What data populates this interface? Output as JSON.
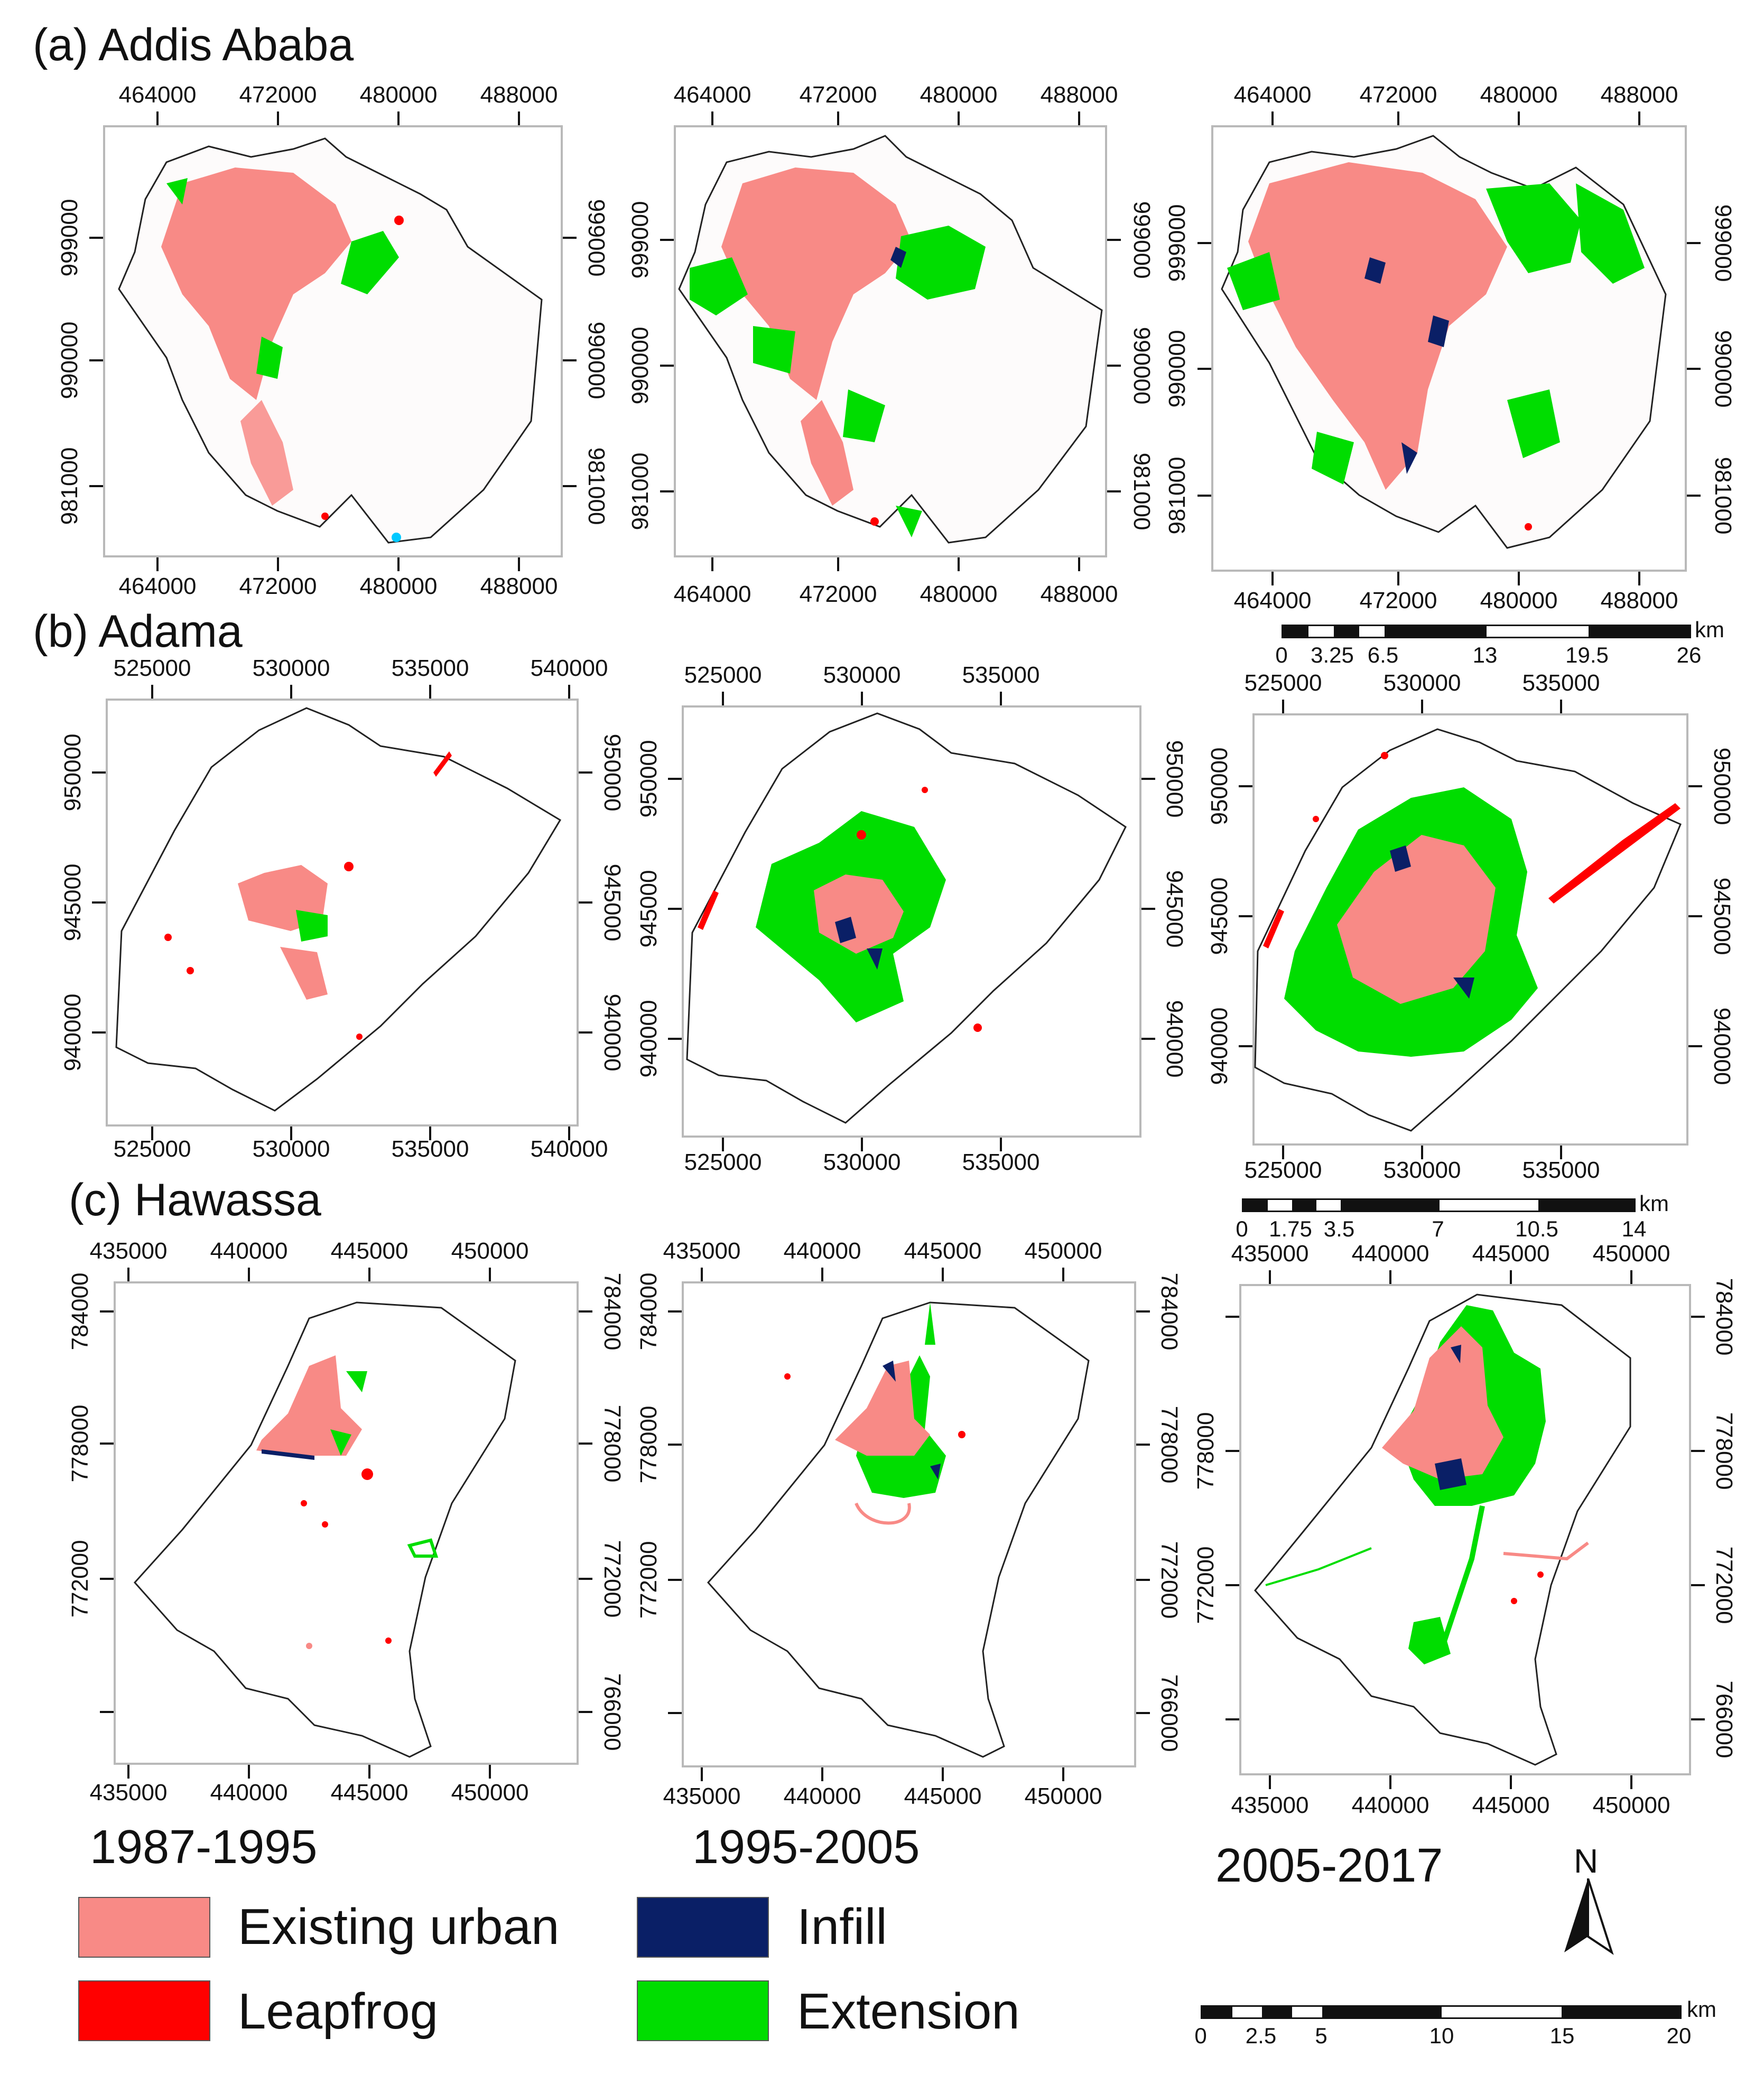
{
  "sections": [
    {
      "label": "(a) Addis Ababa",
      "x_ticks": [
        "464000",
        "472000",
        "480000",
        "488000"
      ],
      "y_ticks": [
        "999000",
        "990000",
        "981000"
      ]
    },
    {
      "label": "(b) Adama",
      "x_ticks": [
        "525000",
        "530000",
        "535000",
        "540000"
      ],
      "x_ticks_short": [
        "525000",
        "530000",
        "535000"
      ],
      "y_ticks": [
        "950000",
        "945000",
        "940000"
      ]
    },
    {
      "label": "(c) Hawassa",
      "x_ticks": [
        "435000",
        "440000",
        "445000",
        "450000"
      ],
      "y_ticks": [
        "784000",
        "778000",
        "772000",
        "766000"
      ]
    }
  ],
  "periods": [
    "1987-1995",
    "1995-2005",
    "2005-2017"
  ],
  "legend": [
    {
      "label": "Existing urban",
      "color": "#f88a86"
    },
    {
      "label": "Infill",
      "color": "#0a1f66"
    },
    {
      "label": "Leapfrog",
      "color": "#ff0000"
    },
    {
      "label": "Extension",
      "color": "#00dd00"
    }
  ],
  "scalebars": [
    {
      "unit": "km",
      "labels": [
        "0",
        "3.25",
        "6.5",
        "13",
        "19.5",
        "26"
      ]
    },
    {
      "unit": "km",
      "labels": [
        "0",
        "1.75",
        "3.5",
        "7",
        "10.5",
        "14"
      ]
    },
    {
      "unit": "km",
      "labels": [
        "0",
        "2.5",
        "5",
        "10",
        "15",
        "20"
      ]
    }
  ],
  "north_arrow": {
    "label": "N"
  },
  "colors": {
    "existing": "#f88a86",
    "infill": "#0a1f66",
    "leapfrog": "#ff0000",
    "extension": "#00dd00",
    "water": "#00c8ff"
  }
}
